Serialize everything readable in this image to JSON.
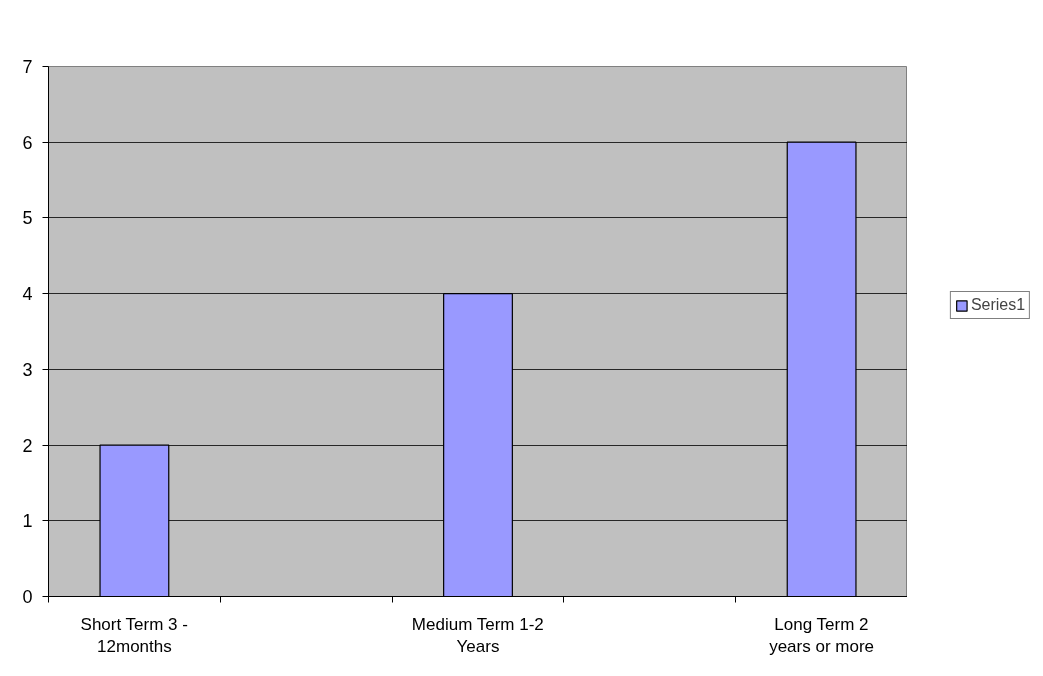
{
  "chart_data": {
    "type": "bar",
    "categories": [
      "Short Term 3 - 12months",
      null,
      "Medium Term 1-2 Years",
      null,
      "Long Term 2 years or more"
    ],
    "series": [
      {
        "name": "Series1",
        "color": "#9999ff",
        "values": [
          2,
          null,
          4,
          null,
          6
        ]
      }
    ],
    "ylim": [
      0,
      7
    ],
    "yticks": [
      0,
      1,
      2,
      3,
      4,
      5,
      6,
      7
    ],
    "grid": "y",
    "legend": "right"
  }
}
